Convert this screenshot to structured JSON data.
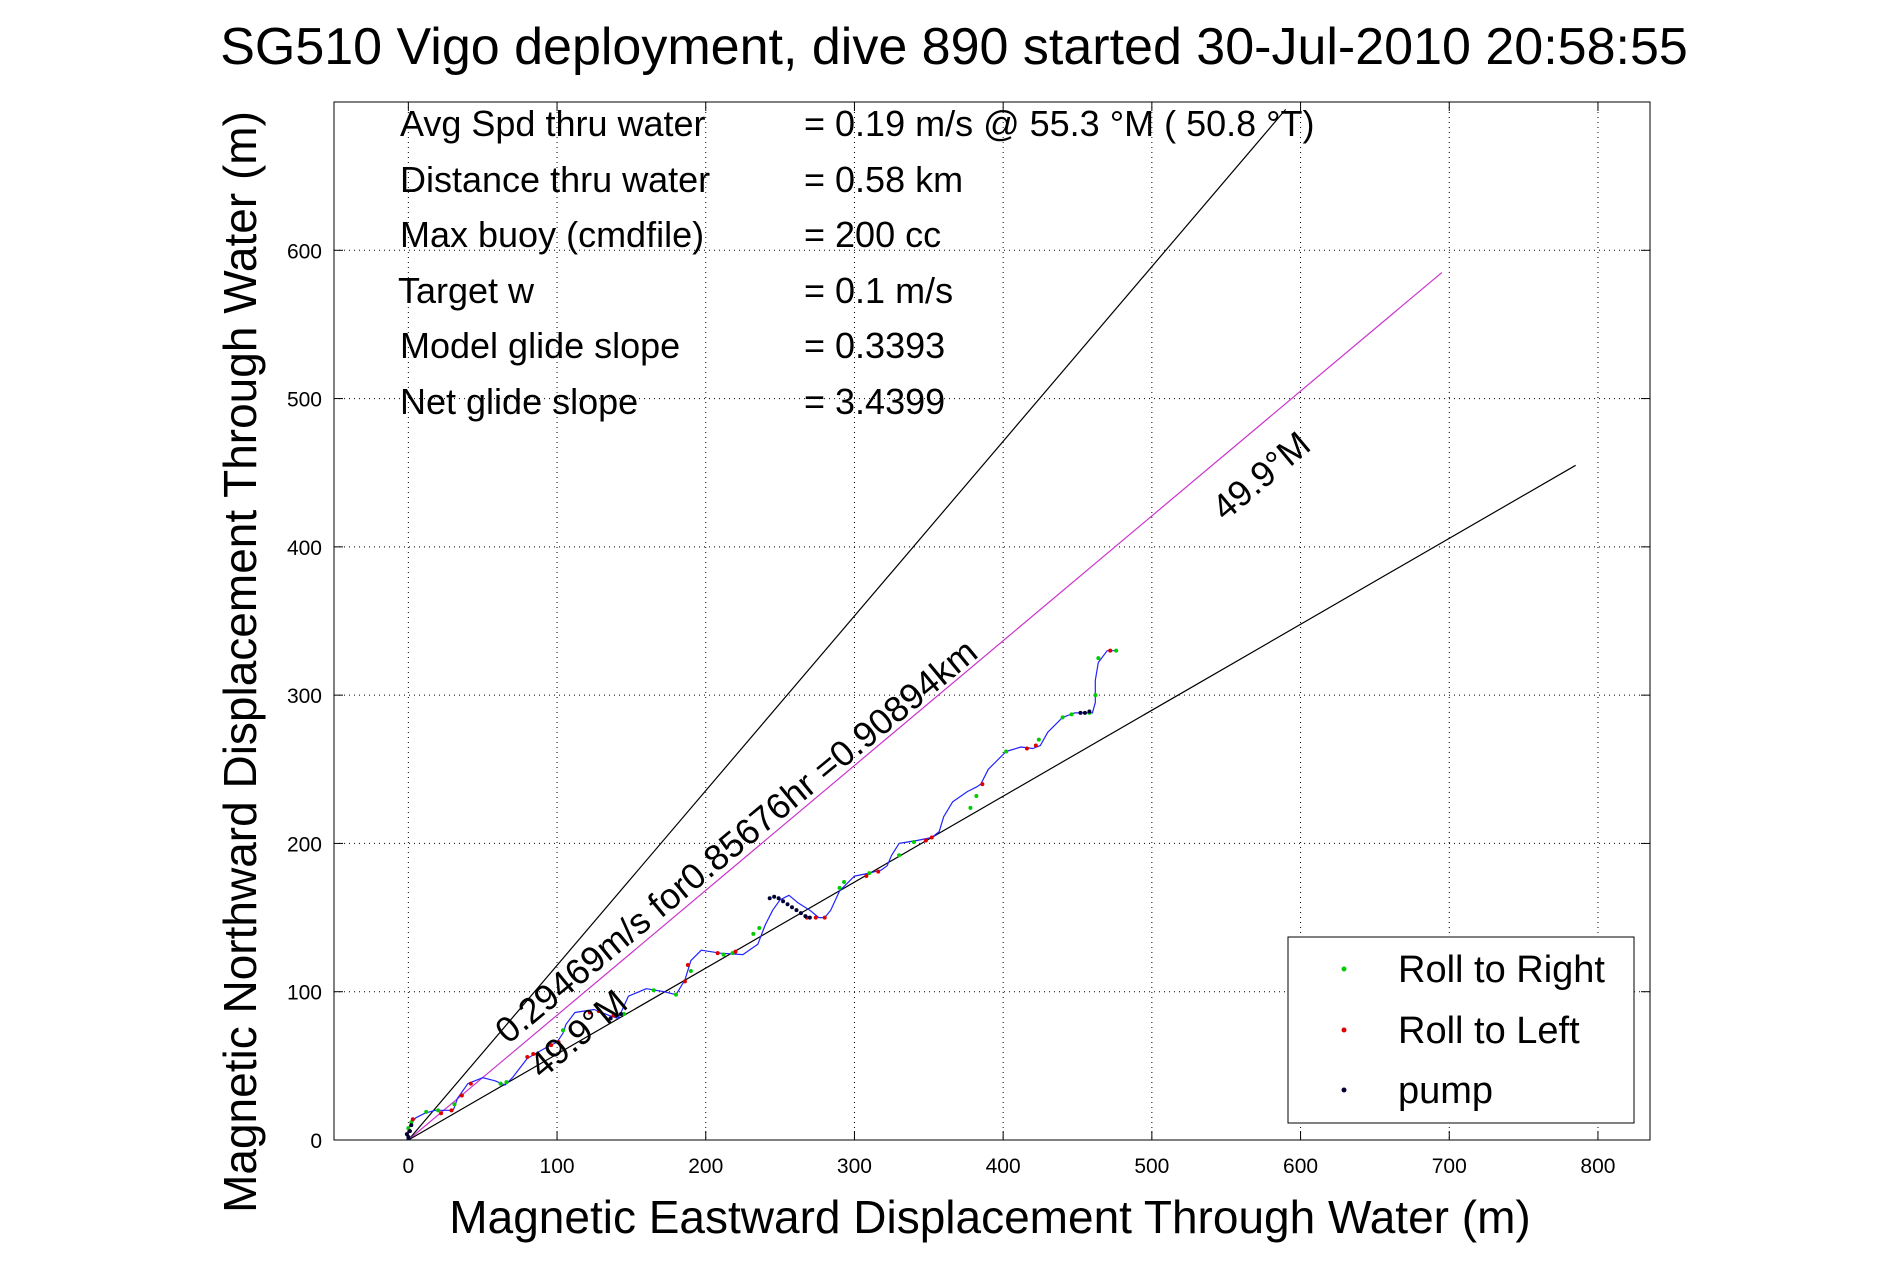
{
  "chart_data": {
    "type": "scatter",
    "title": "SG510 Vigo deployment, dive 890 started 30-Jul-2010 20:58:55",
    "xlabel": "Magnetic Eastward Displacement Through Water (m)",
    "ylabel": "Magnetic Northward Displacement Through Water (m)",
    "xlim": [
      -50,
      835
    ],
    "ylim": [
      0,
      700
    ],
    "xticks": [
      "0",
      "100",
      "200",
      "300",
      "400",
      "500",
      "600",
      "700",
      "800"
    ],
    "yticks": [
      "0",
      "100",
      "200",
      "300",
      "400",
      "500",
      "600"
    ],
    "grid": true,
    "legend_position": "bottom-right",
    "info_lines": [
      {
        "label": "Avg Spd thru water",
        "value": "=  0.19 m/s @  55.3 °M ( 50.8 °T)"
      },
      {
        "label": "Distance thru water",
        "value": "=  0.58 km"
      },
      {
        "label": "Max buoy (cmdfile)",
        "value": "= 200 cc"
      },
      {
        "label": "Target w",
        "value": "= 0.1 m/s"
      },
      {
        "label": "Model glide slope",
        "value": "= 0.3393"
      },
      {
        "label": "Net glide slope",
        "value": "= 3.4399"
      }
    ],
    "annotations": {
      "current_label": "0.29469m/s for0.85676hr =0.90894km",
      "heading_upper": "49.9°M",
      "heading_lower": "49.9°M"
    },
    "reference_lines": [
      {
        "name": "",
        "color": "#000000",
        "x": [
          0,
          590
        ],
        "y": [
          0,
          695
        ]
      },
      {
        "name": "",
        "color": "#cc33cc",
        "x": [
          0,
          695
        ],
        "y": [
          0,
          585
        ]
      },
      {
        "name": "",
        "color": "#000000",
        "x": [
          0,
          785
        ],
        "y": [
          0,
          455
        ]
      }
    ],
    "track": {
      "color": "#2222ff",
      "x": [
        0,
        -1,
        1,
        5,
        11,
        18,
        25,
        30,
        31,
        33,
        40,
        50,
        58,
        63,
        65,
        70,
        80,
        92,
        100,
        104,
        106,
        112,
        125,
        135,
        141,
        143,
        148,
        160,
        172,
        180,
        186,
        190,
        197,
        210,
        225,
        235,
        240,
        245,
        250,
        256,
        262,
        270,
        276,
        280,
        284,
        290,
        300,
        310,
        318,
        322,
        325,
        330,
        342,
        352,
        357,
        360,
        366,
        376,
        382,
        385,
        390,
        402,
        412,
        420,
        425,
        430,
        440,
        448,
        456,
        460,
        462,
        462,
        464,
        470,
        476
      ],
      "y": [
        0,
        4,
        10,
        15,
        18,
        20,
        20,
        20,
        22,
        28,
        38,
        42,
        40,
        38,
        37,
        42,
        55,
        62,
        66,
        72,
        78,
        86,
        88,
        84,
        82,
        86,
        97,
        102,
        100,
        98,
        108,
        121,
        128,
        126,
        125,
        132,
        145,
        155,
        162,
        165,
        160,
        155,
        150,
        150,
        155,
        168,
        178,
        180,
        182,
        185,
        192,
        200,
        202,
        204,
        208,
        218,
        228,
        235,
        238,
        240,
        250,
        262,
        265,
        264,
        266,
        275,
        285,
        288,
        288,
        288,
        295,
        310,
        322,
        330,
        330
      ]
    },
    "series": [
      {
        "name": "Roll to Right",
        "color": "#00cc00",
        "x": [
          0,
          2,
          12,
          20,
          31,
          62,
          66,
          104,
          145,
          165,
          180,
          190,
          212,
          218,
          232,
          236,
          290,
          293,
          310,
          330,
          340,
          378,
          382,
          402,
          424,
          440,
          446,
          458,
          462,
          464,
          476
        ],
        "y": [
          8,
          12,
          19,
          20,
          24,
          38,
          39,
          74,
          85,
          101,
          98,
          114,
          125,
          126,
          139,
          143,
          170,
          174,
          180,
          192,
          201,
          224,
          232,
          262,
          270,
          285,
          287,
          288,
          300,
          325,
          330
        ]
      },
      {
        "name": "Roll to Left",
        "color": "#dd0000",
        "x": [
          1,
          3,
          22,
          29,
          36,
          42,
          80,
          84,
          96,
          101,
          122,
          128,
          138,
          186,
          188,
          208,
          220,
          268,
          274,
          280,
          308,
          316,
          348,
          352,
          386,
          416,
          422,
          472
        ],
        "y": [
          6,
          14,
          18,
          20,
          30,
          38,
          56,
          58,
          64,
          66,
          86,
          87,
          84,
          107,
          118,
          126,
          127,
          150,
          150,
          150,
          178,
          181,
          202,
          204,
          240,
          264,
          266,
          330
        ]
      },
      {
        "name": "pump",
        "color": "#000033",
        "x": [
          0,
          0,
          -1,
          1,
          2,
          136,
          140,
          143,
          243,
          246,
          249,
          252,
          255,
          258,
          261,
          264,
          267,
          270,
          452,
          455,
          458
        ],
        "y": [
          0,
          2,
          4,
          6,
          10,
          82,
          84,
          85,
          163,
          164,
          163,
          161,
          159,
          157,
          155,
          153,
          151,
          150,
          288,
          288,
          289
        ]
      }
    ]
  }
}
